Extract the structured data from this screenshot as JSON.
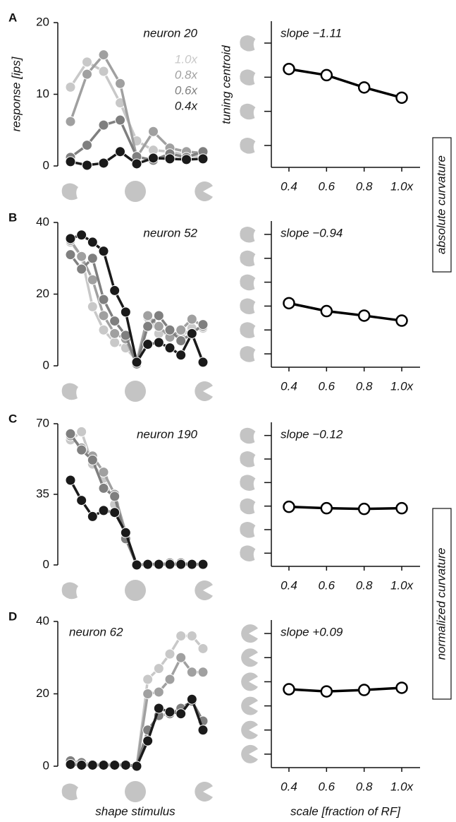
{
  "chart_data": [
    {
      "type": "line",
      "panel": "A",
      "annotation": "neuron 20",
      "ylabel": "response [ips]",
      "categories": [
        null,
        null,
        null,
        null,
        null,
        null,
        null,
        null,
        null
      ],
      "ylim": [
        0,
        20
      ],
      "yticks": [
        0,
        10,
        20
      ],
      "legend": "top-right",
      "series": [
        {
          "name": "1.0x",
          "color": "#c8c8c8",
          "values": [
            11,
            14.5,
            13.2,
            8.8,
            3.5,
            2.2,
            2,
            1.5,
            1.3
          ]
        },
        {
          "name": "0.8x",
          "color": "#a0a0a0",
          "values": [
            6.2,
            12.8,
            15.5,
            11.5,
            1.2,
            4.8,
            2.5,
            2,
            1.8
          ]
        },
        {
          "name": "0.6x",
          "color": "#7f7f7f",
          "values": [
            1.2,
            2.9,
            5.7,
            6.4,
            1.3,
            0.8,
            1.7,
            1.2,
            2
          ]
        },
        {
          "name": "0.4x",
          "color": "#1a1a1a",
          "values": [
            0.6,
            0.1,
            0.4,
            2,
            0.3,
            1.1,
            1,
            0.9,
            1
          ]
        }
      ]
    },
    {
      "type": "line",
      "annotation": "slope −1.11",
      "ylabel": "tuning centroid",
      "x": [
        0.4,
        0.6,
        0.8,
        1.0
      ],
      "xlim": [
        0.3,
        1.1
      ],
      "xticks": [
        0.4,
        0.6,
        0.8,
        {
          "value": 1,
          "label": "1.0x"
        }
      ],
      "ylim": [
        0.4,
        4.6
      ],
      "yticks": [
        1,
        2,
        3,
        4
      ],
      "series": [
        {
          "color": "#000000",
          "values": [
            3.24,
            3.06,
            2.7,
            2.4
          ]
        }
      ]
    },
    {
      "type": "line",
      "panel": "B",
      "annotation": "neuron 52",
      "categories": [
        null,
        null,
        null,
        null,
        null,
        null,
        null,
        null,
        null,
        null,
        null,
        null,
        null
      ],
      "ylim": [
        0,
        40
      ],
      "yticks": [
        0,
        20,
        40
      ],
      "series": [
        {
          "color": "#c8c8c8",
          "values": [
            34.5,
            30.5,
            16.5,
            10,
            6.5,
            5,
            1.5,
            13.5,
            9,
            9,
            8,
            10.5,
            10.5
          ]
        },
        {
          "color": "#a0a0a0",
          "values": [
            35,
            30.5,
            24,
            14,
            9,
            7.5,
            0.5,
            14,
            11,
            8,
            10,
            13,
            11
          ]
        },
        {
          "color": "#7f7f7f",
          "values": [
            31,
            27,
            30,
            18.5,
            12.5,
            8.5,
            0.5,
            11,
            14,
            10,
            7,
            9,
            11.5
          ]
        },
        {
          "color": "#1a1a1a",
          "values": [
            35.5,
            36.5,
            34.5,
            32,
            21,
            15,
            1,
            6,
            6.5,
            5,
            3,
            9,
            1
          ]
        }
      ]
    },
    {
      "type": "line",
      "annotation": "slope −0.94",
      "x": [
        0.4,
        0.6,
        0.8,
        1.0
      ],
      "xlim": [
        0.3,
        1.1
      ],
      "xticks": [
        0.4,
        0.6,
        0.8,
        {
          "value": 1,
          "label": "1.0x"
        }
      ],
      "ylim": [
        0.5,
        6.5
      ],
      "yticks": [
        1,
        2,
        3,
        4,
        5,
        6
      ],
      "series": [
        {
          "color": "#000000",
          "values": [
            3.12,
            2.79,
            2.6,
            2.39
          ]
        }
      ]
    },
    {
      "type": "line",
      "panel": "C",
      "annotation": "neuron 190",
      "categories": [
        null,
        null,
        null,
        null,
        null,
        null,
        null,
        null,
        null,
        null,
        null,
        null,
        null
      ],
      "ylim": [
        0,
        70
      ],
      "yticks": [
        0,
        35,
        70
      ],
      "series": [
        {
          "color": "#c8c8c8",
          "values": [
            62,
            66,
            50,
            43,
            30,
            15,
            0,
            0.5,
            0.5,
            0.5,
            0.5,
            0.5,
            0.3
          ]
        },
        {
          "color": "#a0a0a0",
          "values": [
            64,
            58,
            54,
            46,
            35,
            16,
            0,
            0.5,
            0.5,
            0.5,
            0.5,
            0.5,
            0.3
          ]
        },
        {
          "color": "#7f7f7f",
          "values": [
            65,
            57,
            52,
            38,
            34,
            13,
            0,
            0.5,
            0.5,
            1,
            1,
            0.5,
            0.5
          ]
        },
        {
          "color": "#1a1a1a",
          "values": [
            42,
            32,
            24,
            27,
            26,
            16,
            0,
            0.3,
            0.3,
            0.3,
            0.3,
            0.3,
            0.3
          ]
        }
      ]
    },
    {
      "type": "line",
      "annotation": "slope −0.12",
      "x": [
        0.4,
        0.6,
        0.8,
        1.0
      ],
      "xlim": [
        0.3,
        1.1
      ],
      "xticks": [
        0.4,
        0.6,
        0.8,
        {
          "value": 1,
          "label": "1.0x"
        }
      ],
      "ylim": [
        0.5,
        6.5
      ],
      "yticks": [
        1,
        2,
        3,
        4,
        5,
        6
      ],
      "series": [
        {
          "color": "#000000",
          "values": [
            2.97,
            2.91,
            2.88,
            2.91
          ]
        }
      ]
    },
    {
      "type": "line",
      "panel": "D",
      "annotation": "neuron 62",
      "xlabel": "shape stimulus",
      "categories": [
        null,
        null,
        null,
        null,
        null,
        null,
        null,
        null,
        null,
        null,
        null,
        null,
        null
      ],
      "ylim": [
        0,
        40
      ],
      "yticks": [
        0,
        20,
        40
      ],
      "series": [
        {
          "color": "#c8c8c8",
          "values": [
            0.5,
            0.5,
            0.5,
            0.5,
            0.5,
            0.5,
            0,
            24,
            27,
            31,
            36,
            36,
            32.5
          ]
        },
        {
          "color": "#a0a0a0",
          "values": [
            1,
            0.5,
            0.5,
            0.5,
            0.5,
            0.5,
            0,
            20,
            20.5,
            24,
            30,
            26,
            26
          ]
        },
        {
          "color": "#7f7f7f",
          "values": [
            1.5,
            1,
            0.5,
            0.5,
            0.5,
            0.5,
            0,
            10,
            14,
            14.5,
            16,
            18,
            12.5
          ]
        },
        {
          "color": "#1a1a1a",
          "values": [
            0.5,
            0.3,
            0.3,
            0.3,
            0.3,
            0.3,
            0,
            7,
            16,
            15,
            14.5,
            18.5,
            10
          ]
        }
      ]
    },
    {
      "type": "line",
      "annotation": "slope +0.09",
      "xlabel": "scale [fraction of RF]",
      "x": [
        0.4,
        0.6,
        0.8,
        1.0
      ],
      "xlim": [
        0.3,
        1.1
      ],
      "xticks": [
        0.4,
        0.6,
        0.8,
        {
          "value": 1,
          "label": "1.0x"
        }
      ],
      "ylim": [
        0.5,
        6.5
      ],
      "yticks": [
        1,
        2,
        3,
        4,
        5,
        6
      ],
      "series": [
        {
          "color": "#000000",
          "values": [
            3.69,
            3.6,
            3.66,
            3.75
          ]
        }
      ]
    }
  ],
  "side_labels": [
    "absolute curvature",
    "normalized curvature"
  ]
}
